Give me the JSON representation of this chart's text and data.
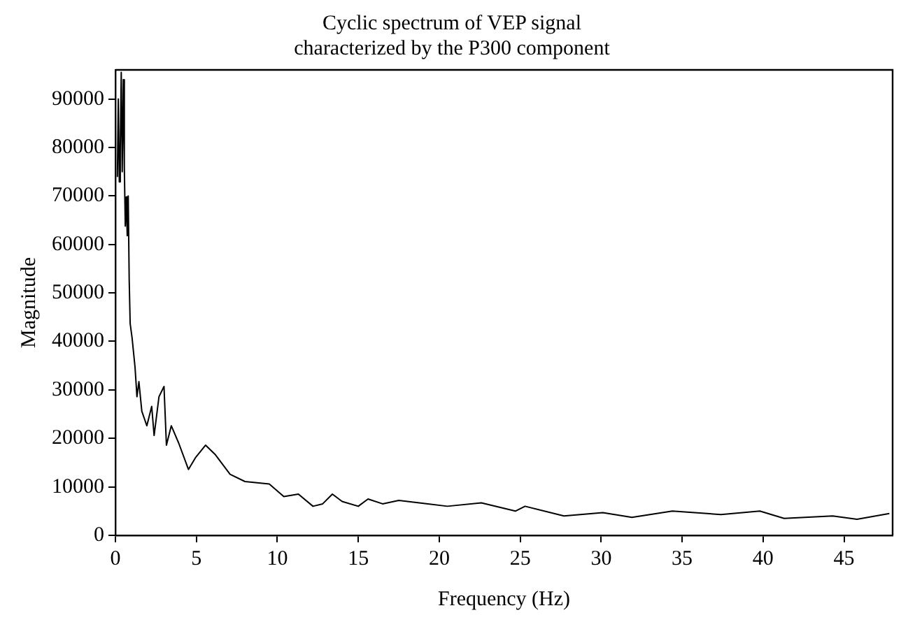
{
  "chart_data": {
    "type": "line",
    "title": "Cyclic spectrum of VEP signal\ncharacterized by the P300 component",
    "xlabel": "Frequency (Hz)",
    "ylabel": "Magnitude",
    "xlim": [
      0,
      48
    ],
    "xticks": [
      0,
      5,
      10,
      15,
      20,
      25,
      30,
      35,
      40,
      45
    ],
    "ylim": [
      0,
      96000
    ],
    "yticks": [
      0,
      10000,
      20000,
      30000,
      40000,
      50000,
      60000,
      70000,
      80000,
      90000
    ],
    "grid": false,
    "legend": false,
    "marker": "none",
    "line_style": "solid",
    "series": [
      {
        "color": "#000000",
        "x": [
          0.12,
          0.18,
          0.24,
          0.3,
          0.36,
          0.42,
          0.49,
          0.55,
          0.61,
          0.67,
          0.73,
          0.79,
          0.85,
          0.91,
          1.03,
          1.21,
          1.33,
          1.45,
          1.63,
          1.94,
          2.24,
          2.39,
          2.69,
          3.0,
          3.15,
          3.45,
          3.9,
          4.51,
          4.96,
          5.57,
          6.18,
          7.08,
          8.0,
          9.5,
          10.4,
          11.3,
          12.2,
          12.8,
          13.4,
          14.0,
          15.0,
          15.6,
          16.5,
          17.5,
          19.3,
          20.5,
          22.6,
          24.7,
          25.3,
          27.7,
          30.1,
          31.9,
          34.4,
          37.4,
          39.8,
          41.3,
          44.3,
          45.8,
          47.8
        ],
        "values": [
          73900,
          90000,
          72900,
          80000,
          95500,
          75000,
          94000,
          75900,
          63800,
          69800,
          61800,
          70000,
          52800,
          43700,
          40700,
          34700,
          28600,
          31700,
          25600,
          22600,
          26600,
          20600,
          28600,
          30700,
          18600,
          22600,
          19100,
          13600,
          16100,
          18600,
          16600,
          12600,
          11100,
          10600,
          8000,
          8500,
          6000,
          6500,
          8500,
          7000,
          6000,
          7500,
          6500,
          7200,
          6500,
          6000,
          6700,
          5000,
          6000,
          4000,
          4700,
          3700,
          5000,
          4300,
          5000,
          3500,
          4000,
          3300,
          4500
        ]
      }
    ]
  }
}
